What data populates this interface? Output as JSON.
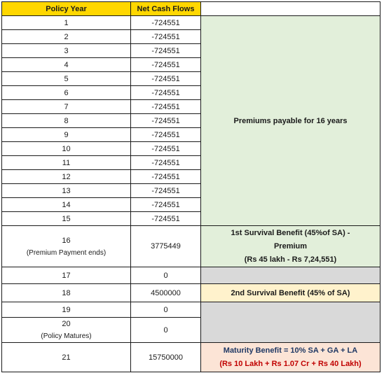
{
  "headers": {
    "policy_year": "Policy Year",
    "net_cash_flows": "Net Cash Flows"
  },
  "rows": [
    {
      "year": "1",
      "flow": "-724551"
    },
    {
      "year": "2",
      "flow": "-724551"
    },
    {
      "year": "3",
      "flow": "-724551"
    },
    {
      "year": "4",
      "flow": "-724551"
    },
    {
      "year": "5",
      "flow": "-724551"
    },
    {
      "year": "6",
      "flow": "-724551"
    },
    {
      "year": "7",
      "flow": "-724551"
    },
    {
      "year": "8",
      "flow": "-724551"
    },
    {
      "year": "9",
      "flow": "-724551"
    },
    {
      "year": "10",
      "flow": "-724551"
    },
    {
      "year": "11",
      "flow": "-724551"
    },
    {
      "year": "12",
      "flow": "-724551"
    },
    {
      "year": "13",
      "flow": "-724551"
    },
    {
      "year": "14",
      "flow": "-724551"
    },
    {
      "year": "15",
      "flow": "-724551"
    },
    {
      "year": "16",
      "year_note": "(Premium Payment ends)",
      "flow": "3775449"
    },
    {
      "year": "17",
      "flow": "0"
    },
    {
      "year": "18",
      "flow": "4500000"
    },
    {
      "year": "19",
      "flow": "0"
    },
    {
      "year": "20",
      "year_note": "(Policy Matures)",
      "flow": "0"
    },
    {
      "year": "21",
      "flow": "15750000"
    }
  ],
  "notes": {
    "premiums": "Premiums payable for 16 years",
    "first_survival": {
      "line1": "1st Survival Benefit (45%of SA) -",
      "line2": "Premium",
      "line3": "(Rs 45 lakh - Rs 7,24,551)"
    },
    "second_survival": "2nd Survival Benefit (45% of SA)",
    "maturity": {
      "line1": "Maturity Benefit = 10% SA + GA  + LA",
      "line2": "(Rs 10 Lakh + Rs 1.07 Cr  + Rs 40 Lakh)"
    }
  },
  "colors": {
    "header_fill": "#ffd700",
    "premium_note_fill": "#e2efda",
    "blank_fill": "#d9d9d9",
    "second_survival_fill": "#fff2cc",
    "maturity_fill": "#fce4d6",
    "maturity_value_text": "#c00000",
    "note_text": "#1f3864"
  }
}
